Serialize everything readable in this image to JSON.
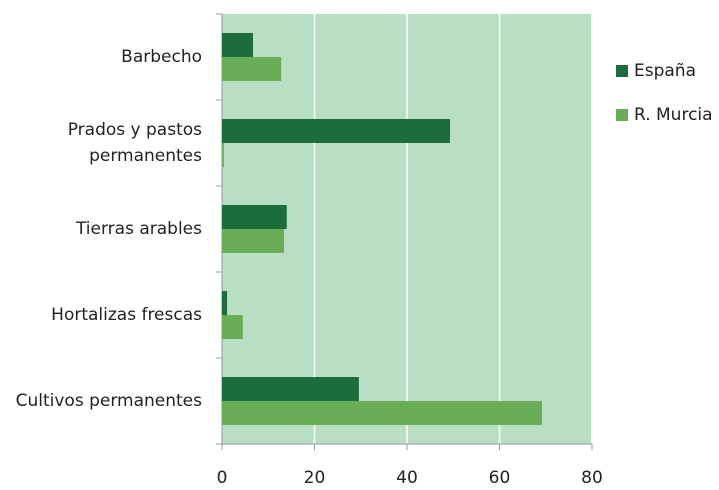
{
  "chart_data": {
    "type": "bar",
    "orientation": "horizontal",
    "categories": [
      "Barbecho",
      "Prados y pastos\npermanentes",
      "Tierras arables",
      "Hortalizas frescas",
      "Cultivos permanentes"
    ],
    "series": [
      {
        "name": "España",
        "color": "#1b6e3c",
        "values": [
          6.7,
          49.3,
          14,
          1.1,
          29.6
        ]
      },
      {
        "name": "R. Murcia",
        "color": "#6aad57",
        "values": [
          12.8,
          0.4,
          13.4,
          4.5,
          69.2
        ]
      }
    ],
    "xlim": [
      0,
      80
    ],
    "xticks": [
      0,
      20,
      40,
      60,
      80
    ],
    "grid": true,
    "legend": "right",
    "background": "#b8dfc3"
  }
}
